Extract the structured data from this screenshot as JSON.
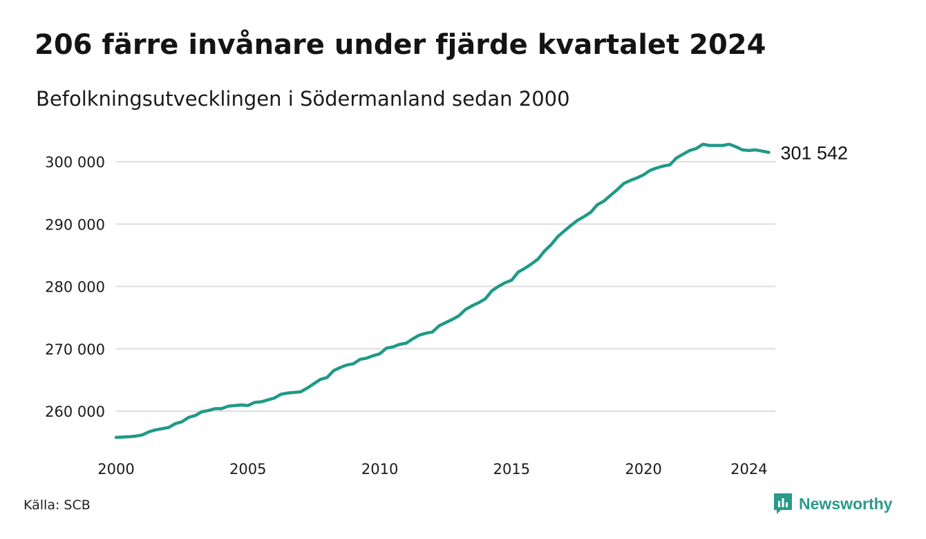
{
  "title": "206 färre invånare under fjärde kvartalet 2024",
  "subtitle": "Befolkningsutvecklingen i Södermanland sedan 2000",
  "source": "Källa: SCB",
  "brand": {
    "name": "Newsworthy",
    "icon": "newsworthy-logo-icon"
  },
  "colors": {
    "line": "#1f9a87",
    "grid": "#dddddd",
    "brand": "#2a9a8a"
  },
  "chart_data": {
    "type": "line",
    "xlim": [
      2000,
      2025
    ],
    "ylim": [
      255000,
      302000
    ],
    "grid": "horizontal",
    "yticks": [
      260000,
      270000,
      280000,
      290000,
      300000
    ],
    "ytick_labels": [
      "260 000",
      "270 000",
      "280 000",
      "290 000",
      "300 000"
    ],
    "xticks": [
      2000,
      2005,
      2010,
      2015,
      2020,
      2024
    ],
    "xtick_labels": [
      "2000",
      "2005",
      "2010",
      "2015",
      "2020",
      "2024"
    ],
    "end_label": "301 542",
    "series": [
      {
        "x": [
          2000.0,
          2000.25,
          2000.5,
          2000.75,
          2001.0,
          2001.25,
          2001.5,
          2001.75,
          2002.0,
          2002.25,
          2002.5,
          2002.75,
          2003.0,
          2003.25,
          2003.5,
          2003.75,
          2004.0,
          2004.25,
          2004.5,
          2004.75,
          2005.0,
          2005.25,
          2005.5,
          2005.75,
          2006.0,
          2006.25,
          2006.5,
          2006.75,
          2007.0,
          2007.25,
          2007.5,
          2007.75,
          2008.0,
          2008.25,
          2008.5,
          2008.75,
          2009.0,
          2009.25,
          2009.5,
          2009.75,
          2010.0,
          2010.25,
          2010.5,
          2010.75,
          2011.0,
          2011.25,
          2011.5,
          2011.75,
          2012.0,
          2012.25,
          2012.5,
          2012.75,
          2013.0,
          2013.25,
          2013.5,
          2013.75,
          2014.0,
          2014.25,
          2014.5,
          2014.75,
          2015.0,
          2015.25,
          2015.5,
          2015.75,
          2016.0,
          2016.25,
          2016.5,
          2016.75,
          2017.0,
          2017.25,
          2017.5,
          2017.75,
          2018.0,
          2018.25,
          2018.5,
          2018.75,
          2019.0,
          2019.25,
          2019.5,
          2019.75,
          2020.0,
          2020.25,
          2020.5,
          2020.75,
          2021.0,
          2021.25,
          2021.5,
          2021.75,
          2022.0,
          2022.25,
          2022.5,
          2022.75,
          2023.0,
          2023.25,
          2023.5,
          2023.75,
          2024.0,
          2024.25,
          2024.5,
          2024.75
        ],
        "values": [
          255800,
          255850,
          255900,
          256000,
          256200,
          256700,
          257000,
          257200,
          257400,
          258000,
          258300,
          259000,
          259300,
          259900,
          260100,
          260400,
          260400,
          260800,
          260900,
          261000,
          260900,
          261400,
          261500,
          261800,
          262100,
          262700,
          262900,
          263000,
          263100,
          263700,
          264400,
          265100,
          265400,
          266500,
          267000,
          267400,
          267600,
          268300,
          268500,
          268900,
          269200,
          270100,
          270300,
          270700,
          270900,
          271600,
          272200,
          272500,
          272700,
          273700,
          274200,
          274700,
          275300,
          276300,
          276900,
          277400,
          278000,
          279300,
          280000,
          280600,
          281000,
          282300,
          282900,
          283600,
          284400,
          285700,
          286700,
          288000,
          288900,
          289800,
          290600,
          291200,
          291900,
          293100,
          293700,
          294600,
          295500,
          296500,
          297000,
          297400,
          297900,
          298600,
          299000,
          299300,
          299500,
          300600,
          301200,
          301800,
          302100,
          302800,
          302600,
          302600,
          302600,
          302800,
          302400,
          301900,
          301800,
          301900,
          301700,
          301500
        ]
      }
    ]
  }
}
